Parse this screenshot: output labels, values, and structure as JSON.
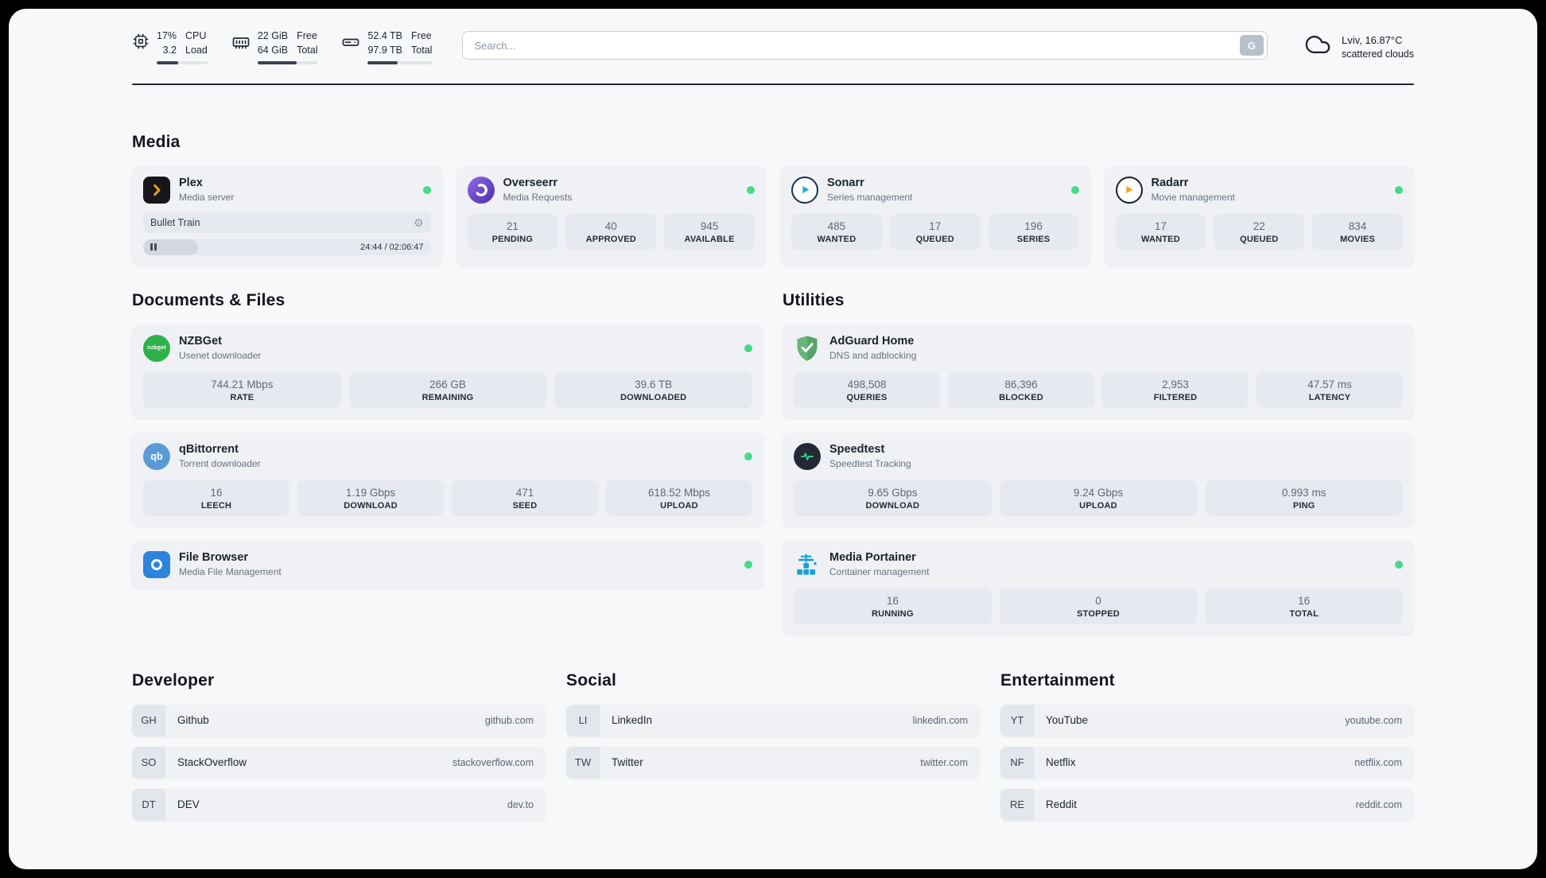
{
  "colors": {
    "status_online": "#47d98b",
    "page_background": "#f7f8fa",
    "card_background": "#eff1f5",
    "progress_fill": "#3a424f"
  },
  "topbar": {
    "resources": [
      {
        "icon": "cpu-icon",
        "values": [
          "17%",
          "3.2"
        ],
        "labels": [
          "CPU",
          "Load"
        ],
        "progress": 42
      },
      {
        "icon": "memory-icon",
        "values": [
          "22 GiB",
          "64 GiB"
        ],
        "labels": [
          "Free",
          "Total"
        ],
        "progress": 65
      },
      {
        "icon": "disk-icon",
        "values": [
          "52.4 TB",
          "97.9 TB"
        ],
        "labels": [
          "Free",
          "Total"
        ],
        "progress": 46
      }
    ],
    "search": {
      "placeholder": "Search...",
      "provider_label": "G"
    },
    "weather": {
      "icon": "cloud-icon",
      "location": "Lviv, 16.87°C",
      "condition": "scattered clouds"
    }
  },
  "sections": {
    "media": {
      "title": "Media",
      "plex": {
        "icon": "plex-icon",
        "name": "Plex",
        "subtitle": "Media server",
        "status": "online",
        "now_playing": "Bullet Train",
        "time_display": "24:44 / 02:06:47",
        "progress": 19
      },
      "overseerr": {
        "icon": "overseerr-icon",
        "name": "Overseerr",
        "subtitle": "Media Requests",
        "status": "online",
        "stats": [
          {
            "value": "21",
            "label": "PENDING"
          },
          {
            "value": "40",
            "label": "APPROVED"
          },
          {
            "value": "945",
            "label": "AVAILABLE"
          }
        ]
      },
      "sonarr": {
        "icon": "sonarr-icon",
        "name": "Sonarr",
        "subtitle": "Series management",
        "status": "online",
        "stats": [
          {
            "value": "485",
            "label": "WANTED"
          },
          {
            "value": "17",
            "label": "QUEUED"
          },
          {
            "value": "196",
            "label": "SERIES"
          }
        ]
      },
      "radarr": {
        "icon": "radarr-icon",
        "name": "Radarr",
        "subtitle": "Movie management",
        "status": "online",
        "stats": [
          {
            "value": "17",
            "label": "WANTED"
          },
          {
            "value": "22",
            "label": "QUEUED"
          },
          {
            "value": "834",
            "label": "MOVIES"
          }
        ]
      }
    },
    "documents": {
      "title": "Documents & Files",
      "nzbget": {
        "icon": "nzbget-icon",
        "icon_text": "nzbget",
        "name": "NZBGet",
        "subtitle": "Usenet downloader",
        "status": "online",
        "stats": [
          {
            "value": "744.21 Mbps",
            "label": "RATE"
          },
          {
            "value": "266 GB",
            "label": "REMAINING"
          },
          {
            "value": "39.6 TB",
            "label": "DOWNLOADED"
          }
        ]
      },
      "qbittorrent": {
        "icon": "qbittorrent-icon",
        "icon_text": "qb",
        "name": "qBittorrent",
        "subtitle": "Torrent downloader",
        "status": "online",
        "stats": [
          {
            "value": "16",
            "label": "LEECH"
          },
          {
            "value": "1.19 Gbps",
            "label": "DOWNLOAD"
          },
          {
            "value": "471",
            "label": "SEED"
          },
          {
            "value": "618.52 Mbps",
            "label": "UPLOAD"
          }
        ]
      },
      "filebrowser": {
        "icon": "filebrowser-icon",
        "name": "File Browser",
        "subtitle": "Media File Management",
        "status": "online"
      }
    },
    "utilities": {
      "title": "Utilities",
      "adguard": {
        "icon": "adguard-icon",
        "name": "AdGuard Home",
        "subtitle": "DNS and adblocking",
        "stats": [
          {
            "value": "498,508",
            "label": "QUERIES"
          },
          {
            "value": "86,396",
            "label": "BLOCKED"
          },
          {
            "value": "2,953",
            "label": "FILTERED"
          },
          {
            "value": "47.57 ms",
            "label": "LATENCY"
          }
        ]
      },
      "speedtest": {
        "icon": "speedtest-icon",
        "name": "Speedtest",
        "subtitle": "Speedtest Tracking",
        "stats": [
          {
            "value": "9.65 Gbps",
            "label": "DOWNLOAD"
          },
          {
            "value": "9.24 Gbps",
            "label": "UPLOAD"
          },
          {
            "value": "0.993 ms",
            "label": "PING"
          }
        ]
      },
      "portainer": {
        "icon": "portainer-icon",
        "name": "Media Portainer",
        "subtitle": "Container management",
        "status": "online",
        "stats": [
          {
            "value": "16",
            "label": "RUNNING"
          },
          {
            "value": "0",
            "label": "STOPPED"
          },
          {
            "value": "16",
            "label": "TOTAL"
          }
        ]
      }
    }
  },
  "bookmarks": [
    {
      "title": "Developer",
      "items": [
        {
          "abbr": "GH",
          "name": "Github",
          "url": "github.com"
        },
        {
          "abbr": "SO",
          "name": "StackOverflow",
          "url": "stackoverflow.com"
        },
        {
          "abbr": "DT",
          "name": "DEV",
          "url": "dev.to"
        }
      ]
    },
    {
      "title": "Social",
      "items": [
        {
          "abbr": "LI",
          "name": "LinkedIn",
          "url": "linkedin.com"
        },
        {
          "abbr": "TW",
          "name": "Twitter",
          "url": "twitter.com"
        }
      ]
    },
    {
      "title": "Entertainment",
      "items": [
        {
          "abbr": "YT",
          "name": "YouTube",
          "url": "youtube.com"
        },
        {
          "abbr": "NF",
          "name": "Netflix",
          "url": "netflix.com"
        },
        {
          "abbr": "RE",
          "name": "Reddit",
          "url": "reddit.com"
        }
      ]
    }
  ]
}
